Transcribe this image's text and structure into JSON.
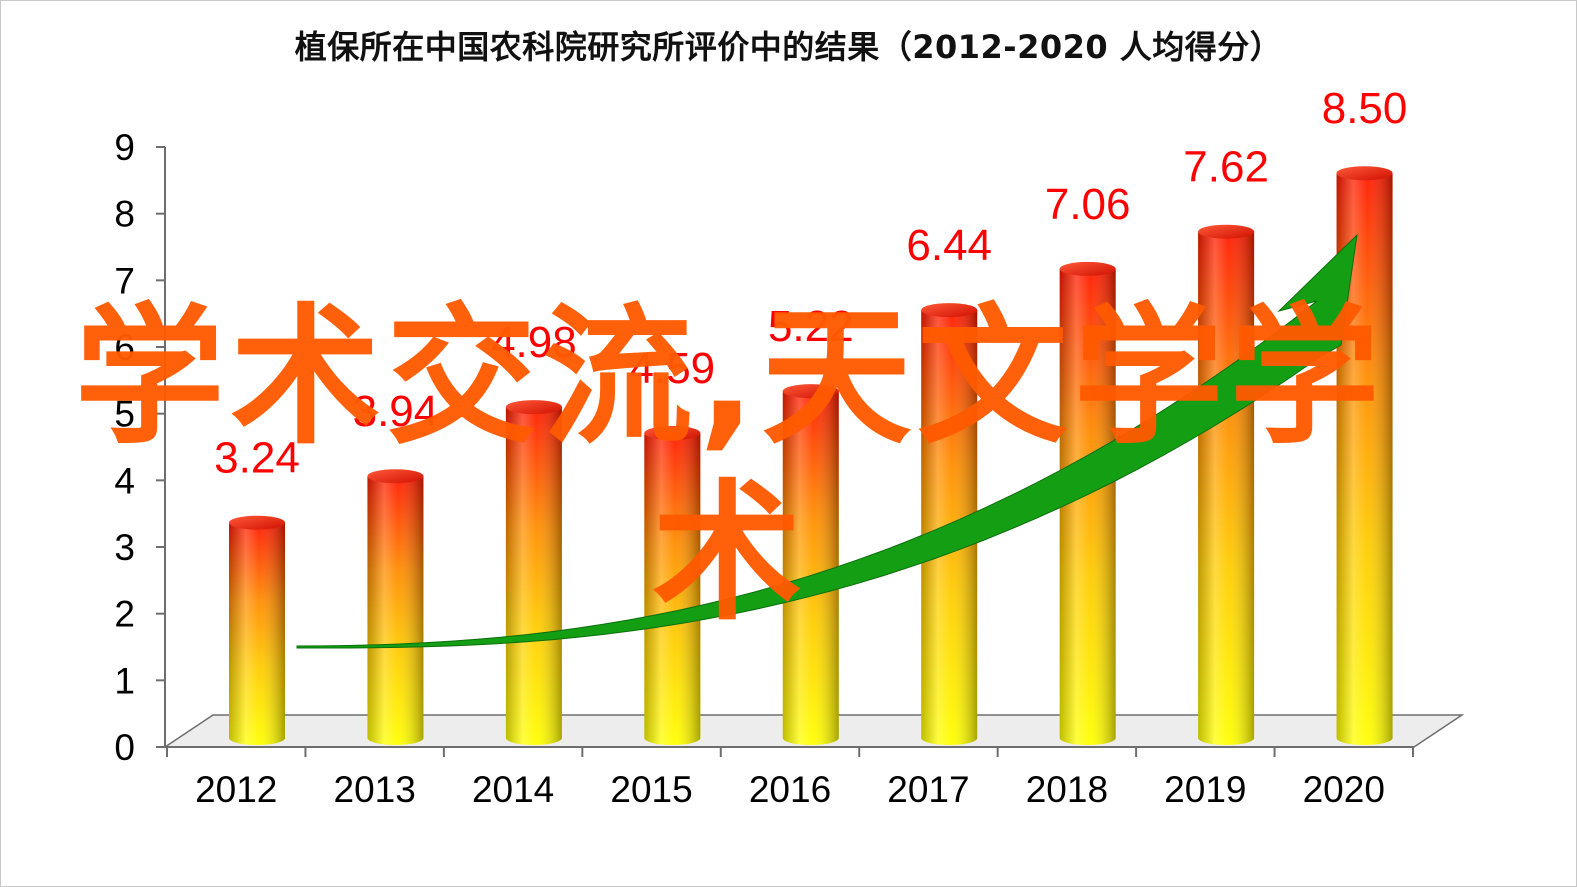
{
  "chart_data": {
    "type": "bar",
    "title": "植保所在中国农科院研究所评价中的结果（2012-2020 人均得分）",
    "categories": [
      "2012",
      "2013",
      "2014",
      "2015",
      "2016",
      "2017",
      "2018",
      "2019",
      "2020"
    ],
    "series": [
      {
        "values": [
          3.24,
          3.94,
          4.98,
          4.59,
          5.22,
          6.44,
          7.06,
          7.62,
          8.5
        ]
      }
    ],
    "data_labels": [
      "3.24",
      "3.94",
      "4.98",
      "4.59",
      "5.22",
      "6.44",
      "7.06",
      "7.62",
      "8.50"
    ],
    "y_ticks": [
      "0",
      "1",
      "2",
      "3",
      "4",
      "5",
      "6",
      "7",
      "8",
      "9"
    ],
    "ylim": [
      0,
      9
    ],
    "style": "3d-cylinder",
    "trend_arrow": true,
    "grid": false,
    "colors": {
      "bar_top": "#ff1a00",
      "bar_mid": "#ff8c00",
      "bar_bottom": "#ffff00",
      "data_label": "#ff0000",
      "trend_arrow": "#139e13",
      "watermark": "#ff5a00"
    }
  },
  "watermark": "学术交流,天文学学术"
}
